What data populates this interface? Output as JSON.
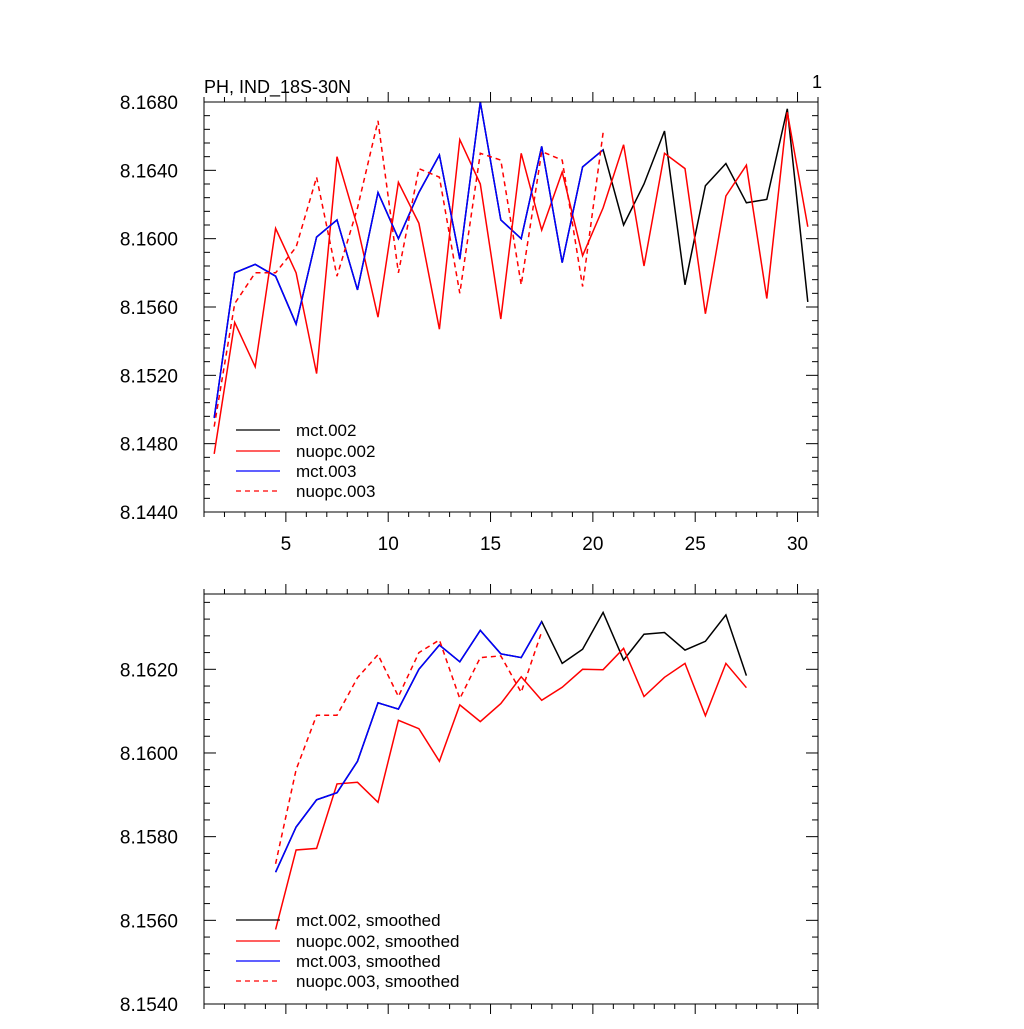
{
  "chart_data": [
    {
      "type": "line",
      "title": "PH, IND_18S-30N",
      "corner_label": "1",
      "xlim": [
        1,
        31
      ],
      "ylim": [
        8.144,
        8.168
      ],
      "xticks": [
        5,
        10,
        15,
        20,
        25,
        30
      ],
      "xtick_labels": [
        "5",
        "10",
        "15",
        "20",
        "25",
        "30"
      ],
      "yticks": [
        8.144,
        8.148,
        8.152,
        8.156,
        8.16,
        8.164,
        8.168
      ],
      "ytick_labels": [
        "8.1440",
        "8.1480",
        "8.1520",
        "8.1560",
        "8.1600",
        "8.1640",
        "8.1680"
      ],
      "legend_position": "bottom-left",
      "series": [
        {
          "name": "mct.002",
          "color": "#000000",
          "dash": "solid",
          "x": [
            1.5,
            2.5,
            3.5,
            4.5,
            5.5,
            6.5,
            7.5,
            8.5,
            9.5,
            10.5,
            11.5,
            12.5,
            13.5,
            14.5,
            15.5,
            16.5,
            17.5,
            18.5,
            19.5,
            20.5,
            21.5,
            22.5,
            23.5,
            24.5,
            25.5,
            26.5,
            27.5,
            28.5,
            29.5,
            30.5
          ],
          "y": [
            8.1495,
            8.158,
            8.1585,
            8.1578,
            8.155,
            8.1601,
            8.1611,
            8.157,
            8.1627,
            8.16,
            8.1627,
            8.1649,
            8.1588,
            8.168,
            8.1611,
            8.16,
            8.1654,
            8.1586,
            8.1642,
            8.1652,
            8.1608,
            8.1632,
            8.1663,
            8.1573,
            8.1631,
            8.1644,
            8.1621,
            8.1623,
            8.1676,
            8.1563
          ]
        },
        {
          "name": "nuopc.002",
          "color": "#ff0000",
          "dash": "solid",
          "x": [
            1.5,
            2.5,
            3.5,
            4.5,
            5.5,
            6.5,
            7.5,
            8.5,
            9.5,
            10.5,
            11.5,
            12.5,
            13.5,
            14.5,
            15.5,
            16.5,
            17.5,
            18.5,
            19.5,
            20.5,
            21.5,
            22.5,
            23.5,
            24.5,
            25.5,
            26.5,
            27.5,
            28.5,
            29.5,
            30.5
          ],
          "y": [
            8.1474,
            8.1551,
            8.1525,
            8.1606,
            8.158,
            8.1521,
            8.1648,
            8.1607,
            8.1554,
            8.1633,
            8.1609,
            8.1547,
            8.1658,
            8.1632,
            8.1553,
            8.165,
            8.1605,
            8.1639,
            8.159,
            8.1618,
            8.1655,
            8.1584,
            8.165,
            8.1641,
            8.1556,
            8.1625,
            8.1643,
            8.1565,
            8.1674,
            8.1607
          ]
        },
        {
          "name": "mct.003",
          "color": "#0000ff",
          "dash": "solid",
          "x": [
            1.5,
            2.5,
            3.5,
            4.5,
            5.5,
            6.5,
            7.5,
            8.5,
            9.5,
            10.5,
            11.5,
            12.5,
            13.5,
            14.5,
            15.5,
            16.5,
            17.5,
            18.5,
            19.5,
            20.5
          ],
          "y": [
            8.1495,
            8.158,
            8.1585,
            8.1578,
            8.155,
            8.1601,
            8.1611,
            8.157,
            8.1627,
            8.16,
            8.1627,
            8.1649,
            8.1588,
            8.168,
            8.1611,
            8.16,
            8.1654,
            8.1586,
            8.1642,
            8.1652
          ]
        },
        {
          "name": "nuopc.003",
          "color": "#ff0000",
          "dash": "dashed",
          "x": [
            1.5,
            2.5,
            3.5,
            4.5,
            5.5,
            6.5,
            7.5,
            8.5,
            9.5,
            10.5,
            11.5,
            12.5,
            13.5,
            14.5,
            15.5,
            16.5,
            17.5,
            18.5,
            19.5,
            20.5
          ],
          "y": [
            8.149,
            8.1562,
            8.158,
            8.158,
            8.1595,
            8.1636,
            8.1578,
            8.1618,
            8.1669,
            8.158,
            8.1641,
            8.1636,
            8.1568,
            8.165,
            8.1646,
            8.1573,
            8.1651,
            8.1646,
            8.1572,
            8.1662
          ]
        }
      ]
    },
    {
      "type": "line",
      "xlim": [
        1,
        31
      ],
      "ylim": [
        8.154,
        8.1638
      ],
      "xticks": [
        5,
        10,
        15,
        20,
        25,
        30
      ],
      "yticks": [
        8.154,
        8.156,
        8.158,
        8.16,
        8.162
      ],
      "ytick_labels": [
        "8.1540",
        "8.1560",
        "8.1580",
        "8.1600",
        "8.1620"
      ],
      "legend_position": "bottom-left",
      "series": [
        {
          "name": "mct.002, smoothed",
          "color": "#000000",
          "dash": "solid",
          "x": [
            4.5,
            5.5,
            6.5,
            7.5,
            8.5,
            9.5,
            10.5,
            11.5,
            12.5,
            13.5,
            14.5,
            15.5,
            16.5,
            17.5,
            18.5,
            19.5,
            20.5,
            21.5,
            22.5,
            23.5,
            24.5,
            25.5,
            26.5,
            27.5
          ],
          "y": [
            8.15715,
            8.15823,
            8.15888,
            8.15905,
            8.1598,
            8.1612,
            8.16105,
            8.162,
            8.16258,
            8.16218,
            8.16293,
            8.16237,
            8.16228,
            8.16314,
            8.16214,
            8.16248,
            8.16336,
            8.16222,
            8.16284,
            8.16288,
            8.16246,
            8.16267,
            8.1633,
            8.16185
          ]
        },
        {
          "name": "nuopc.002, smoothed",
          "color": "#ff0000",
          "dash": "solid",
          "x": [
            4.5,
            5.5,
            6.5,
            7.5,
            8.5,
            9.5,
            10.5,
            11.5,
            12.5,
            13.5,
            14.5,
            15.5,
            16.5,
            17.5,
            18.5,
            19.5,
            20.5,
            21.5,
            22.5,
            23.5,
            24.5,
            25.5,
            26.5,
            27.5
          ],
          "y": [
            8.15578,
            8.15768,
            8.15772,
            8.15926,
            8.1593,
            8.15882,
            8.16078,
            8.16058,
            8.1598,
            8.16115,
            8.16075,
            8.16118,
            8.16182,
            8.16126,
            8.16157,
            8.162,
            8.16199,
            8.1625,
            8.16135,
            8.16181,
            8.16214,
            8.16089,
            8.16214,
            8.16156
          ]
        },
        {
          "name": "mct.003, smoothed",
          "color": "#0000ff",
          "dash": "solid",
          "x": [
            4.5,
            5.5,
            6.5,
            7.5,
            8.5,
            9.5,
            10.5,
            11.5,
            12.5,
            13.5,
            14.5,
            15.5,
            16.5,
            17.5
          ],
          "y": [
            8.15715,
            8.15823,
            8.15888,
            8.15905,
            8.1598,
            8.1612,
            8.16105,
            8.162,
            8.16258,
            8.16218,
            8.16293,
            8.16237,
            8.16228,
            8.16314
          ]
        },
        {
          "name": "nuopc.003, smoothed",
          "color": "#ff0000",
          "dash": "dashed",
          "x": [
            4.5,
            5.5,
            6.5,
            7.5,
            8.5,
            9.5,
            10.5,
            11.5,
            12.5,
            13.5,
            14.5,
            15.5,
            16.5,
            17.5
          ],
          "y": [
            8.15735,
            8.1596,
            8.1609,
            8.1609,
            8.1618,
            8.16235,
            8.16135,
            8.1624,
            8.1627,
            8.1613,
            8.16228,
            8.16232,
            8.16145,
            8.1629
          ]
        }
      ]
    }
  ]
}
